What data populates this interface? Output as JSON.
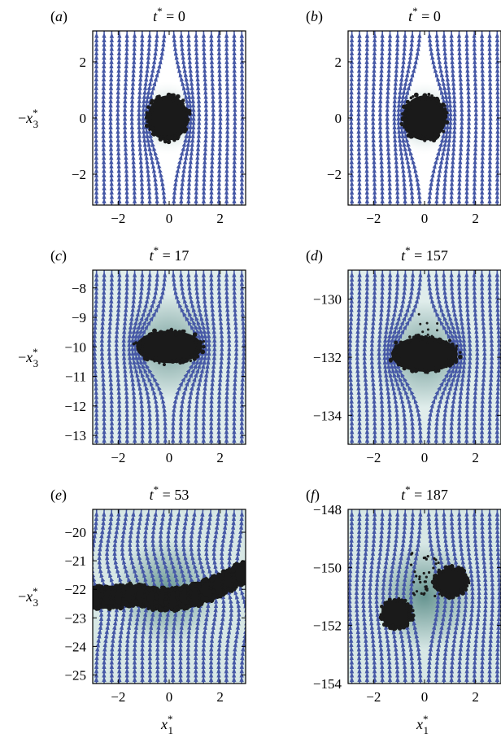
{
  "chart_data": [
    {
      "type": "scatter",
      "panel_label": "(a)",
      "title": {
        "var": "t",
        "sup": "*",
        "eq": " = 0"
      },
      "xlim": [
        -3,
        3
      ],
      "ylim": [
        -3.1,
        3.1
      ],
      "xticks": [
        -2,
        0,
        2
      ],
      "yticks": [
        -2,
        0,
        2
      ],
      "ylabel": {
        "prefix": "−x",
        "sub": "3",
        "sup": "*"
      },
      "xlabel": null,
      "blob": {
        "cx": -0.05,
        "cy": 0.0,
        "rx": 0.8,
        "ry": 0.8,
        "shape": "sphere"
      }
    },
    {
      "type": "scatter",
      "panel_label": "(b)",
      "title": {
        "var": "t",
        "sup": "*",
        "eq": " = 0"
      },
      "xlim": [
        -3,
        3
      ],
      "ylim": [
        -3.1,
        3.1
      ],
      "xticks": [
        -2,
        0,
        2
      ],
      "yticks": [
        -2,
        0,
        2
      ],
      "ylabel": null,
      "xlabel": null,
      "blob": {
        "cx": 0.0,
        "cy": 0.0,
        "rx": 0.85,
        "ry": 0.8,
        "shape": "sphere"
      }
    },
    {
      "type": "scatter",
      "panel_label": "(c)",
      "title": {
        "var": "t",
        "sup": "*",
        "eq": " = 17"
      },
      "xlim": [
        -3,
        3
      ],
      "ylim": [
        -13.3,
        -7.4
      ],
      "xticks": [
        -2,
        0,
        2
      ],
      "yticks": [
        -8,
        -9,
        -10,
        -11,
        -12,
        -13
      ],
      "ylabel": {
        "prefix": "−x",
        "sub": "3",
        "sup": "*"
      },
      "xlabel": null,
      "blob": {
        "cx": 0.0,
        "cy": -10.0,
        "rx": 1.3,
        "ry": 0.55,
        "shape": "cap"
      }
    },
    {
      "type": "scatter",
      "panel_label": "(d)",
      "title": {
        "var": "t",
        "sup": "*",
        "eq": " = 157"
      },
      "xlim": [
        -3,
        3
      ],
      "ylim": [
        -135.0,
        -129.0
      ],
      "xticks": [
        -2,
        0,
        2
      ],
      "yticks": [
        -130,
        -132,
        -134
      ],
      "ylabel": null,
      "xlabel": null,
      "blob": {
        "cx": 0.0,
        "cy": -131.9,
        "rx": 1.3,
        "ry": 0.6,
        "shape": "cap"
      }
    },
    {
      "type": "scatter",
      "panel_label": "(e)",
      "title": {
        "var": "t",
        "sup": "*",
        "eq": " = 53"
      },
      "xlim": [
        -3,
        3
      ],
      "ylim": [
        -25.3,
        -19.2
      ],
      "xticks": [
        -2,
        0,
        2
      ],
      "yticks": [
        -20,
        -21,
        -22,
        -23,
        -24,
        -25
      ],
      "ylabel": {
        "prefix": "−x",
        "sub": "3",
        "sup": "*"
      },
      "xlabel": {
        "prefix": "x",
        "sub": "1",
        "sup": "*"
      },
      "blob": {
        "cx": -0.1,
        "cy": -22.1,
        "shape": "arc"
      }
    },
    {
      "type": "scatter",
      "panel_label": "(f)",
      "title": {
        "var": "t",
        "sup": "*",
        "eq": " = 187"
      },
      "xlim": [
        -3,
        3
      ],
      "ylim": [
        -154.0,
        -148.0
      ],
      "xticks": [
        -2,
        0,
        2
      ],
      "yticks": [
        -148,
        -150,
        -152,
        -154
      ],
      "ylabel": null,
      "xlabel": {
        "prefix": "x",
        "sub": "1",
        "sup": "*"
      },
      "blob": {
        "cx": 0.0,
        "cy": -151.0,
        "shape": "split"
      }
    }
  ],
  "colors": {
    "streamline": "#4658a6",
    "particles": "#1a1a1a",
    "background_wake": "#5f8f8b",
    "background_far": "#dcebe9"
  }
}
